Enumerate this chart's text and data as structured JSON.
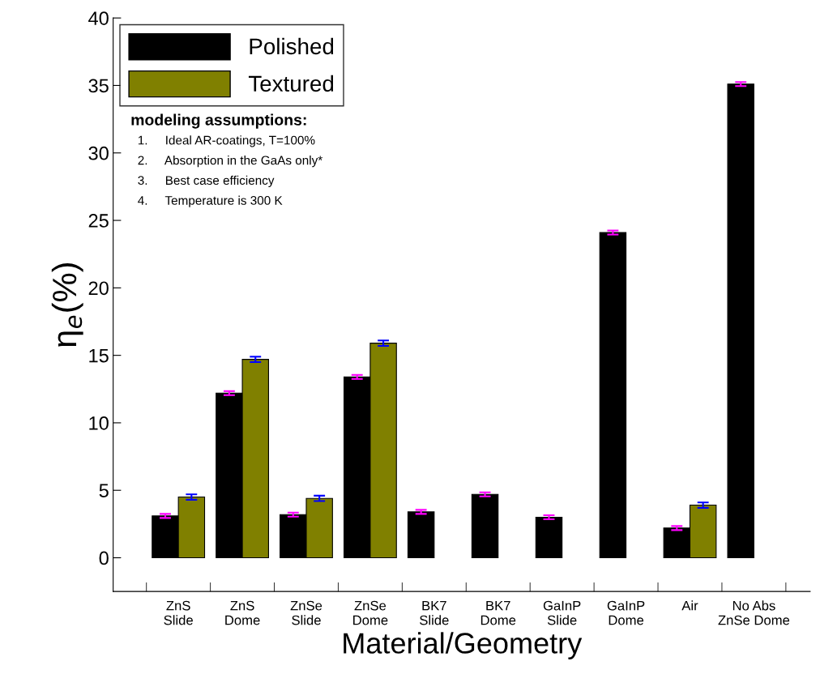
{
  "chart_data": {
    "type": "bar",
    "xlabel": "Material/Geometry",
    "ylabel": "η$_{e}$(%)",
    "categories": [
      "ZnS\nSlide",
      "ZnS\nDome",
      "ZnSe\nSlide",
      "ZnSe\nDome",
      "BK7\nSlide",
      "BK7\nDome",
      "GaInP\nSlide",
      "GaInP\nDome",
      "Air",
      "No Abs\nZnSe Dome"
    ],
    "series": [
      {
        "name": "Polished",
        "color": "#000000",
        "values": [
          3.1,
          12.2,
          3.2,
          13.4,
          3.4,
          4.7,
          3.0,
          24.1,
          2.2,
          35.1
        ],
        "errors": [
          0.15,
          0.15,
          0.15,
          0.15,
          0.15,
          0.15,
          0.15,
          0.15,
          0.15,
          0.15
        ]
      },
      {
        "name": "Textured",
        "color": "#808000",
        "values": [
          4.5,
          14.7,
          4.4,
          15.9,
          null,
          null,
          null,
          null,
          3.9,
          null
        ],
        "errors": [
          0.2,
          0.2,
          0.2,
          0.2,
          null,
          null,
          null,
          null,
          0.2,
          null
        ]
      }
    ],
    "ylim": [
      -2.5,
      40
    ],
    "yticks": [
      0,
      5,
      10,
      15,
      20,
      25,
      30,
      35,
      40
    ],
    "grid": false,
    "legend": "top left",
    "annotations": [
      "modeling assumptions:",
      "1.     Ideal AR-coatings, T=100%",
      "2.     Absorption in the GaAs only*",
      "3.     Best case efficiency",
      "4.     Temperature is 300 K"
    ]
  }
}
